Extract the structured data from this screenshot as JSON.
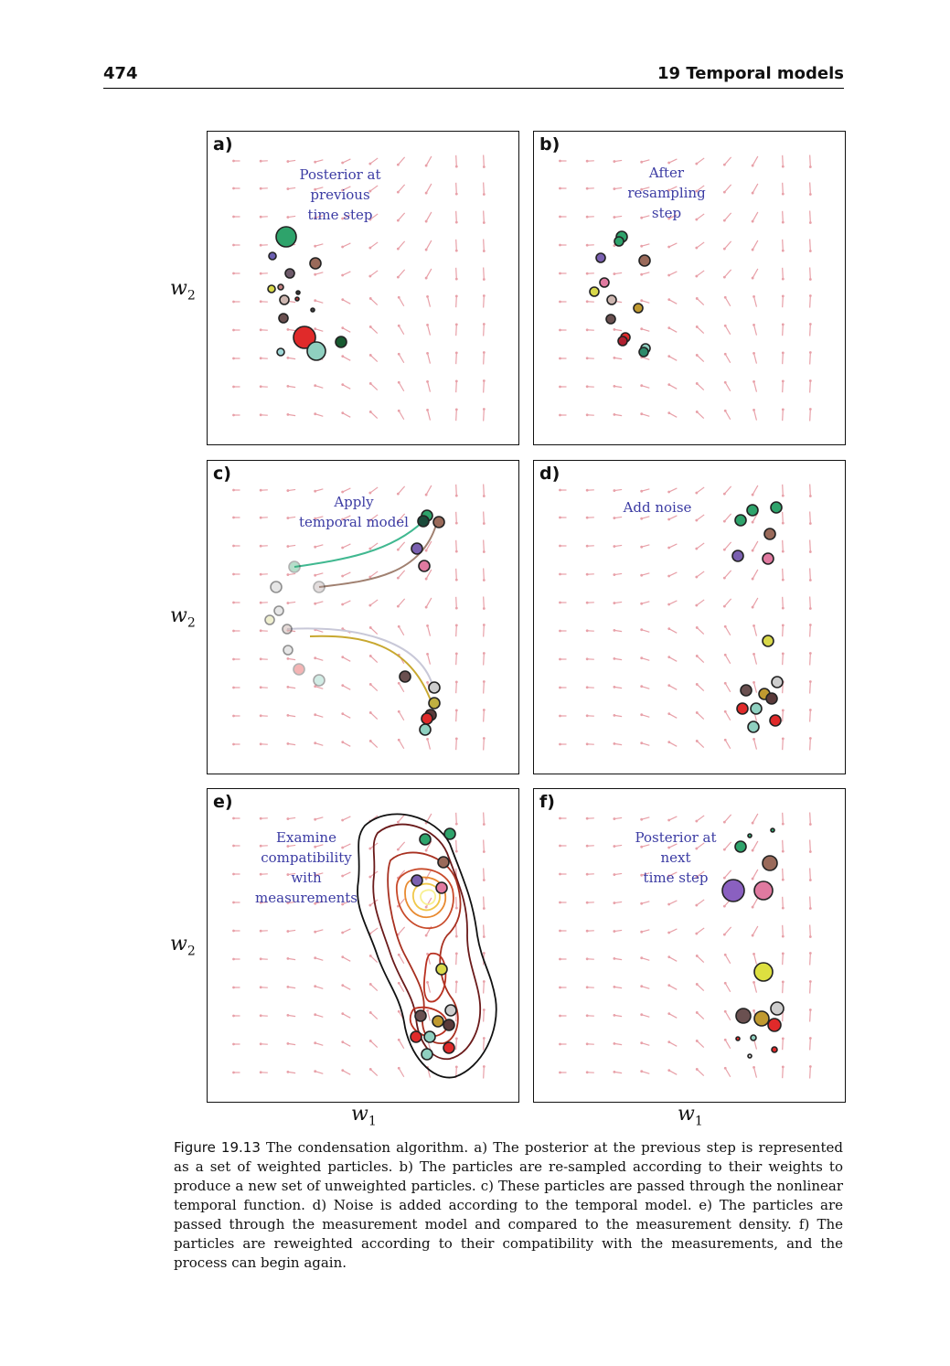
{
  "header": {
    "page_number": "474",
    "chapter": "19 Temporal models"
  },
  "axes": {
    "y_var": "w",
    "y_sub": "2",
    "x_var": "w",
    "x_sub": "1"
  },
  "panels": [
    {
      "label": "a)",
      "note": [
        "Posterior at",
        "previous",
        "time step"
      ]
    },
    {
      "label": "b)",
      "note": [
        "After",
        "resampling",
        "step"
      ]
    },
    {
      "label": "c)",
      "note": [
        "Apply",
        "temporal model"
      ]
    },
    {
      "label": "d)",
      "note": [
        "Add noise"
      ]
    },
    {
      "label": "e)",
      "note": [
        "Examine",
        "compatibility",
        "with",
        "measurements"
      ]
    },
    {
      "label": "f)",
      "note": [
        "Posterior at",
        "next",
        "time step"
      ]
    }
  ],
  "caption": {
    "label": "Figure 19.13",
    "text": "The condensation algorithm. a) The posterior at the previous step is represented as a set of weighted particles. b) The particles are re-sampled according to their weights to produce a new set of unweighted particles. c) These particles are passed through the nonlinear temporal function. d) Noise is added according to the temporal model. e) The particles are passed through the measurement model and compared to the measurement density. f) The particles are reweighted according to their compatibility with the measurements, and the process can begin again."
  },
  "colors": {
    "vector_field": "#e8a0a8",
    "note_text": "#3b3ba3",
    "frame": "#111111"
  }
}
